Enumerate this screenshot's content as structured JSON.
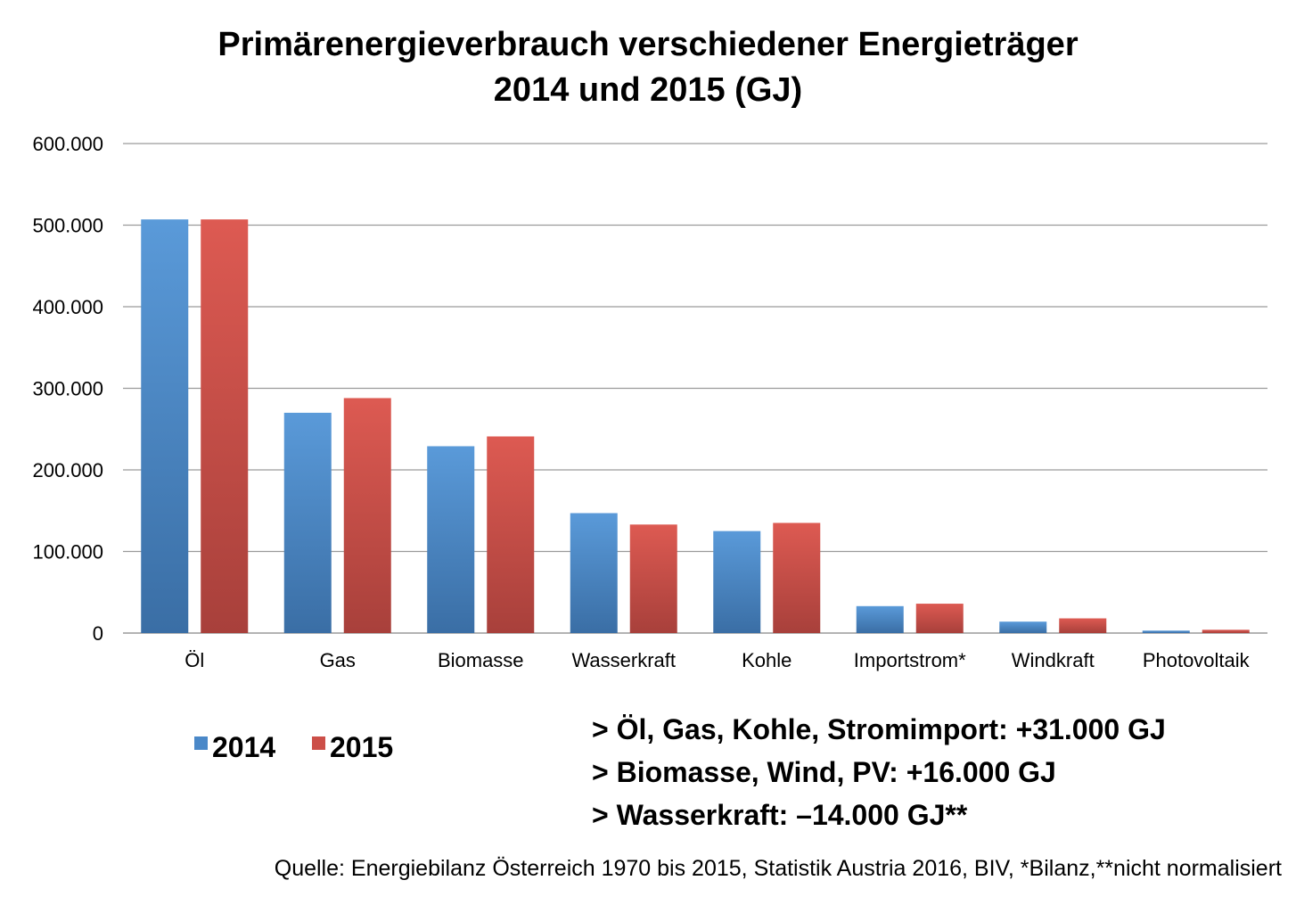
{
  "title_line1": "Primärenergieverbrauch verschiedener Energieträger",
  "title_line2": "2014 und 2015 (GJ)",
  "colors": {
    "s2014_top": "#5a9ad9",
    "s2014_bottom": "#3a6ea5",
    "s2015_top": "#dd5a52",
    "s2015_bottom": "#a8403b",
    "grid": "#9a9a9a"
  },
  "chart_data": {
    "type": "bar",
    "categories": [
      "Öl",
      "Gas",
      "Biomasse",
      "Wasserkraft",
      "Kohle",
      "Importstrom*",
      "Windkraft",
      "Photovoltaik"
    ],
    "series": [
      {
        "name": "2014",
        "values": [
          507000,
          270000,
          229000,
          147000,
          125000,
          33000,
          14000,
          3000
        ]
      },
      {
        "name": "2015",
        "values": [
          507000,
          288000,
          241000,
          133000,
          135000,
          36000,
          18000,
          4000
        ]
      }
    ],
    "yticks": [
      0,
      100000,
      200000,
      300000,
      400000,
      500000,
      600000
    ],
    "ytick_labels": [
      "0",
      "100.000",
      "200.000",
      "300.000",
      "400.000",
      "500.000",
      "600.000"
    ],
    "ylim": [
      0,
      600000
    ],
    "grid": true,
    "legend_position": "bottom-left"
  },
  "legend": [
    {
      "label": "2014"
    },
    {
      "label": "2015"
    }
  ],
  "notes": [
    "> Öl, Gas, Kohle, Stromimport: +31.000 GJ",
    "> Biomasse, Wind, PV: +16.000 GJ",
    "> Wasserkraft: –14.000 GJ**"
  ],
  "source": "Quelle: Energiebilanz Österreich 1970 bis 2015, Statistik Austria 2016, BIV, *Bilanz,**nicht normalisiert"
}
